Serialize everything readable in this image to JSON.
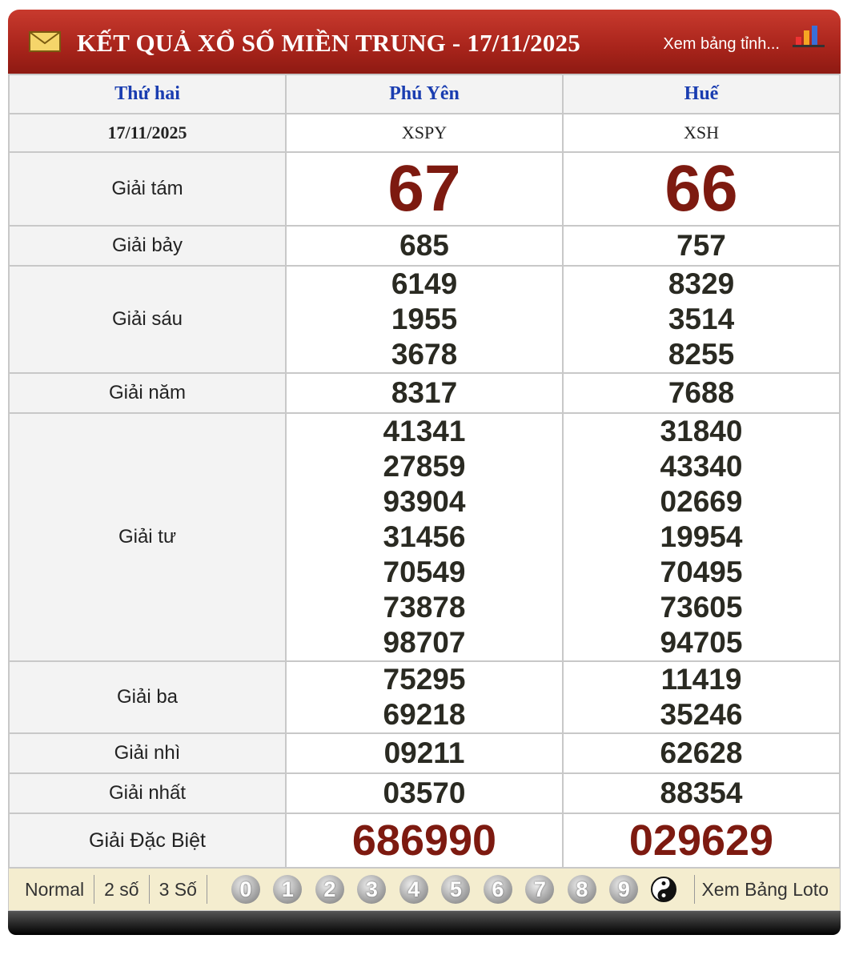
{
  "header": {
    "title": "KẾT QUẢ XỔ SỐ MIỀN TRUNG - 17/11/2025",
    "link": "Xem bảng tỉnh..."
  },
  "table": {
    "columns": [
      "Thứ hai",
      "Phú Yên",
      "Huế"
    ],
    "codes": [
      "17/11/2025",
      "XSPY",
      "XSH"
    ],
    "rows": [
      {
        "label": "Giải tám",
        "values": [
          [
            "67"
          ],
          [
            "66"
          ]
        ]
      },
      {
        "label": "Giải bảy",
        "values": [
          [
            "685"
          ],
          [
            "757"
          ]
        ]
      },
      {
        "label": "Giải sáu",
        "values": [
          [
            "6149",
            "1955",
            "3678"
          ],
          [
            "8329",
            "3514",
            "8255"
          ]
        ]
      },
      {
        "label": "Giải năm",
        "values": [
          [
            "8317"
          ],
          [
            "7688"
          ]
        ]
      },
      {
        "label": "Giải tư",
        "values": [
          [
            "41341",
            "27859",
            "93904",
            "31456",
            "70549",
            "73878",
            "98707"
          ],
          [
            "31840",
            "43340",
            "02669",
            "19954",
            "70495",
            "73605",
            "94705"
          ]
        ]
      },
      {
        "label": "Giải ba",
        "values": [
          [
            "75295",
            "69218"
          ],
          [
            "11419",
            "35246"
          ]
        ]
      },
      {
        "label": "Giải nhì",
        "values": [
          [
            "09211"
          ],
          [
            "62628"
          ]
        ]
      },
      {
        "label": "Giải nhất",
        "values": [
          [
            "03570"
          ],
          [
            "88354"
          ]
        ]
      },
      {
        "label": "Giải Đặc Biệt",
        "values": [
          [
            "686990"
          ],
          [
            "029629"
          ]
        ]
      }
    ]
  },
  "footer": {
    "modes": [
      "Normal",
      "2 số",
      "3 Số"
    ],
    "balls": [
      "0",
      "1",
      "2",
      "3",
      "4",
      "5",
      "6",
      "7",
      "8",
      "9"
    ],
    "link": "Xem Bảng Loto"
  }
}
